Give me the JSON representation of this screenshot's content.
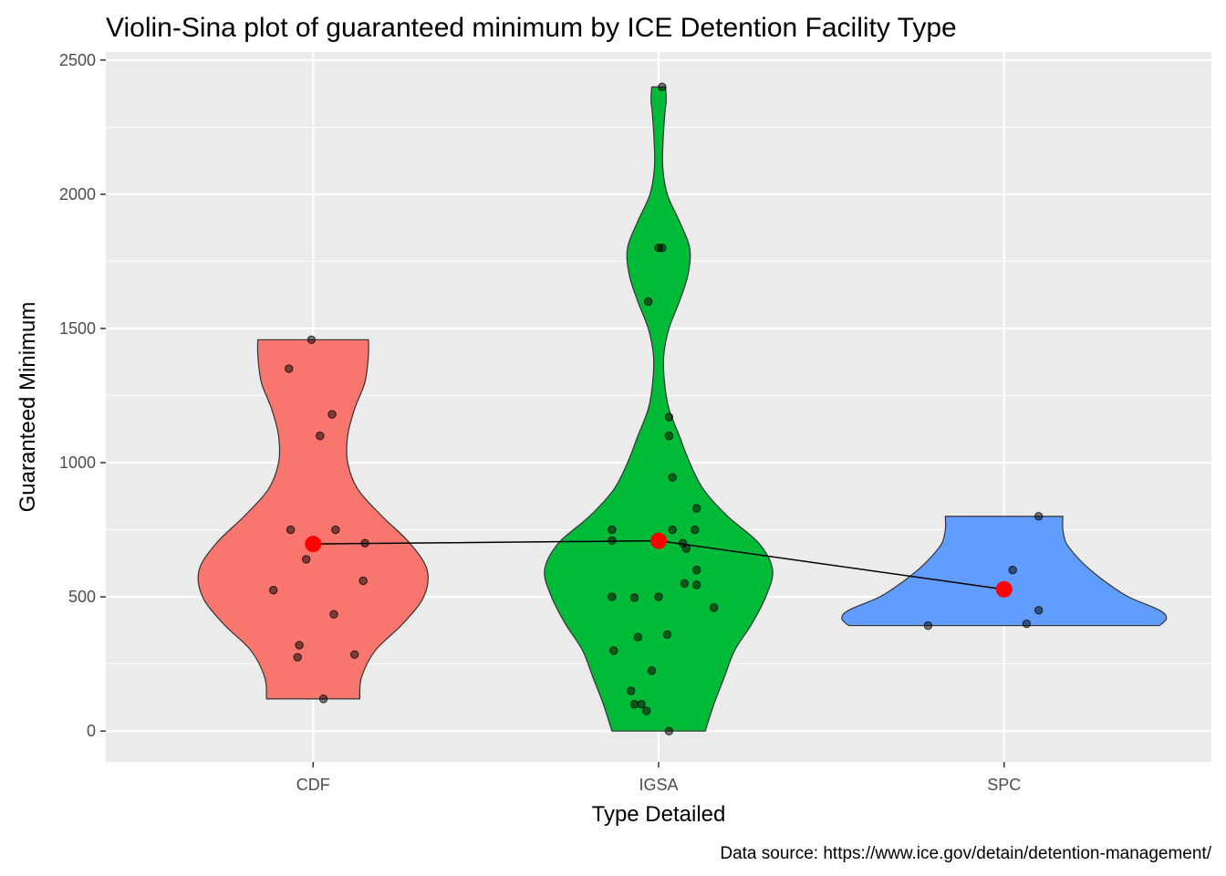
{
  "chart_data": {
    "type": "violin",
    "title": "Violin-Sina plot of guaranteed minimum by ICE Detention Facility Type",
    "xlabel": "Type Detailed",
    "ylabel": "Guaranteed Minimum",
    "caption": "Data source: https://www.ice.gov/detain/detention-management/",
    "categories": [
      "CDF",
      "IGSA",
      "SPC"
    ],
    "ylim": [
      -115,
      2530
    ],
    "yticks": [
      0,
      500,
      1000,
      1500,
      2000,
      2500
    ],
    "ytick_labels": [
      "0",
      "500",
      "1000",
      "1500",
      "2000",
      "2500"
    ],
    "grid": true,
    "legend": "none",
    "colors": {
      "CDF": "#F8766D",
      "IGSA": "#00BA38",
      "SPC": "#619CFF",
      "panel_background": "#EBEBEB",
      "grid": "#FFFFFF",
      "mean_point": "#FF0000",
      "mean_line": "#000000",
      "points": "#000000"
    },
    "means": [
      {
        "category": "CDF",
        "value": 697
      },
      {
        "category": "IGSA",
        "value": 709
      },
      {
        "category": "SPC",
        "value": 528
      }
    ],
    "violins": [
      {
        "category": "CDF",
        "profile": [
          [
            120,
            0.135
          ],
          [
            200,
            0.14
          ],
          [
            300,
            0.18
          ],
          [
            400,
            0.26
          ],
          [
            500,
            0.32
          ],
          [
            600,
            0.33
          ],
          [
            700,
            0.28
          ],
          [
            800,
            0.2
          ],
          [
            900,
            0.13
          ],
          [
            1000,
            0.1
          ],
          [
            1100,
            0.1
          ],
          [
            1200,
            0.12
          ],
          [
            1300,
            0.15
          ],
          [
            1400,
            0.16
          ],
          [
            1458,
            0.16
          ]
        ]
      },
      {
        "category": "IGSA",
        "profile": [
          [
            0,
            0.135
          ],
          [
            100,
            0.16
          ],
          [
            200,
            0.19
          ],
          [
            300,
            0.22
          ],
          [
            400,
            0.27
          ],
          [
            500,
            0.31
          ],
          [
            600,
            0.33
          ],
          [
            700,
            0.29
          ],
          [
            800,
            0.2
          ],
          [
            900,
            0.13
          ],
          [
            1000,
            0.09
          ],
          [
            1100,
            0.06
          ],
          [
            1200,
            0.03
          ],
          [
            1300,
            0.017
          ],
          [
            1400,
            0.015
          ],
          [
            1500,
            0.03
          ],
          [
            1600,
            0.06
          ],
          [
            1700,
            0.085
          ],
          [
            1800,
            0.09
          ],
          [
            1900,
            0.06
          ],
          [
            2000,
            0.025
          ],
          [
            2100,
            0.012
          ],
          [
            2200,
            0.013
          ],
          [
            2300,
            0.018
          ],
          [
            2350,
            0.022
          ],
          [
            2400,
            0.02
          ]
        ]
      },
      {
        "category": "SPC",
        "profile": [
          [
            393,
            0.45
          ],
          [
            420,
            0.47
          ],
          [
            450,
            0.45
          ],
          [
            500,
            0.36
          ],
          [
            550,
            0.3
          ],
          [
            600,
            0.25
          ],
          [
            650,
            0.21
          ],
          [
            700,
            0.18
          ],
          [
            750,
            0.17
          ],
          [
            800,
            0.17
          ]
        ]
      }
    ],
    "points": [
      {
        "category": "CDF",
        "x_offset": -0.005,
        "y": 1458
      },
      {
        "category": "CDF",
        "x_offset": -0.07,
        "y": 1350
      },
      {
        "category": "CDF",
        "x_offset": 0.055,
        "y": 1180
      },
      {
        "category": "CDF",
        "x_offset": 0.02,
        "y": 1100
      },
      {
        "category": "CDF",
        "x_offset": -0.065,
        "y": 750
      },
      {
        "category": "CDF",
        "x_offset": 0.065,
        "y": 750
      },
      {
        "category": "CDF",
        "x_offset": 0.15,
        "y": 700
      },
      {
        "category": "CDF",
        "x_offset": -0.02,
        "y": 640
      },
      {
        "category": "CDF",
        "x_offset": 0.145,
        "y": 560
      },
      {
        "category": "CDF",
        "x_offset": -0.115,
        "y": 525
      },
      {
        "category": "CDF",
        "x_offset": 0.06,
        "y": 435
      },
      {
        "category": "CDF",
        "x_offset": -0.04,
        "y": 320
      },
      {
        "category": "CDF",
        "x_offset": 0.12,
        "y": 285
      },
      {
        "category": "CDF",
        "x_offset": -0.045,
        "y": 275
      },
      {
        "category": "CDF",
        "x_offset": 0.03,
        "y": 120
      },
      {
        "category": "IGSA",
        "x_offset": 0.01,
        "y": 2400
      },
      {
        "category": "IGSA",
        "x_offset": 0.0,
        "y": 1800
      },
      {
        "category": "IGSA",
        "x_offset": 0.01,
        "y": 1800
      },
      {
        "category": "IGSA",
        "x_offset": -0.03,
        "y": 1600
      },
      {
        "category": "IGSA",
        "x_offset": 0.03,
        "y": 1170
      },
      {
        "category": "IGSA",
        "x_offset": 0.03,
        "y": 1100
      },
      {
        "category": "IGSA",
        "x_offset": 0.04,
        "y": 945
      },
      {
        "category": "IGSA",
        "x_offset": 0.11,
        "y": 830
      },
      {
        "category": "IGSA",
        "x_offset": -0.135,
        "y": 750
      },
      {
        "category": "IGSA",
        "x_offset": 0.04,
        "y": 750
      },
      {
        "category": "IGSA",
        "x_offset": 0.105,
        "y": 750
      },
      {
        "category": "IGSA",
        "x_offset": -0.135,
        "y": 710
      },
      {
        "category": "IGSA",
        "x_offset": 0.07,
        "y": 700
      },
      {
        "category": "IGSA",
        "x_offset": 0.08,
        "y": 680
      },
      {
        "category": "IGSA",
        "x_offset": 0.11,
        "y": 600
      },
      {
        "category": "IGSA",
        "x_offset": 0.075,
        "y": 550
      },
      {
        "category": "IGSA",
        "x_offset": 0.11,
        "y": 545
      },
      {
        "category": "IGSA",
        "x_offset": -0.135,
        "y": 500
      },
      {
        "category": "IGSA",
        "x_offset": -0.07,
        "y": 497
      },
      {
        "category": "IGSA",
        "x_offset": 0.0,
        "y": 500
      },
      {
        "category": "IGSA",
        "x_offset": 0.16,
        "y": 460
      },
      {
        "category": "IGSA",
        "x_offset": 0.025,
        "y": 360
      },
      {
        "category": "IGSA",
        "x_offset": -0.06,
        "y": 350
      },
      {
        "category": "IGSA",
        "x_offset": -0.13,
        "y": 300
      },
      {
        "category": "IGSA",
        "x_offset": -0.02,
        "y": 225
      },
      {
        "category": "IGSA",
        "x_offset": -0.08,
        "y": 150
      },
      {
        "category": "IGSA",
        "x_offset": -0.07,
        "y": 100
      },
      {
        "category": "IGSA",
        "x_offset": -0.05,
        "y": 100
      },
      {
        "category": "IGSA",
        "x_offset": -0.035,
        "y": 75
      },
      {
        "category": "IGSA",
        "x_offset": 0.03,
        "y": 0
      },
      {
        "category": "SPC",
        "x_offset": 0.1,
        "y": 800
      },
      {
        "category": "SPC",
        "x_offset": 0.025,
        "y": 600
      },
      {
        "category": "SPC",
        "x_offset": 0.1,
        "y": 450
      },
      {
        "category": "SPC",
        "x_offset": 0.065,
        "y": 400
      },
      {
        "category": "SPC",
        "x_offset": -0.22,
        "y": 393
      }
    ]
  }
}
